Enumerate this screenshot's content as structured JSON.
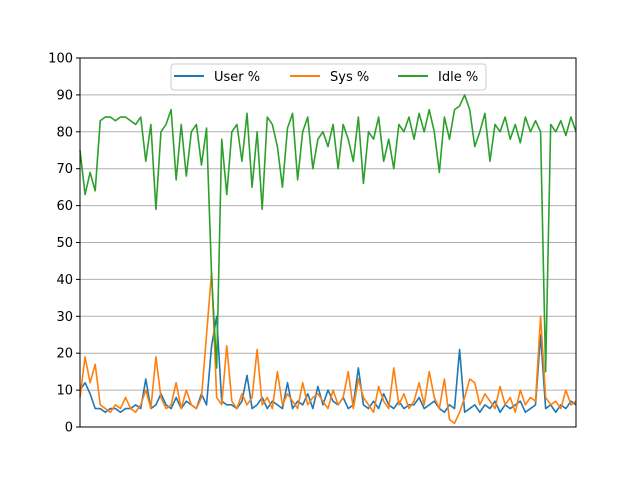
{
  "chart_data": {
    "type": "line",
    "title": "",
    "xlabel": "",
    "ylabel": "",
    "xlim": [
      0,
      98
    ],
    "ylim": [
      0,
      100
    ],
    "yticks": [
      "0",
      "10",
      "20",
      "30",
      "40",
      "50",
      "60",
      "70",
      "80",
      "90",
      "100"
    ],
    "x_ticks_visible": false,
    "grid": "y-axis on",
    "legend": "top-center",
    "series": [
      {
        "name": "User %",
        "color": "#1f77b4",
        "values": [
          10,
          12,
          9,
          5,
          5,
          4,
          5,
          5,
          4,
          5,
          5,
          6,
          5,
          13,
          5,
          6,
          9,
          6,
          5,
          8,
          5,
          7,
          6,
          5,
          9,
          6,
          22,
          30,
          7,
          6,
          6,
          5,
          7,
          14,
          5,
          6,
          8,
          5,
          7,
          6,
          5,
          12,
          5,
          7,
          6,
          9,
          5,
          11,
          6,
          10,
          7,
          6,
          8,
          5,
          6,
          16,
          6,
          5,
          7,
          5,
          9,
          6,
          5,
          7,
          5,
          6,
          6,
          8,
          5,
          6,
          7,
          5,
          4,
          6,
          5,
          21,
          4,
          5,
          6,
          4,
          6,
          5,
          7,
          4,
          6,
          5,
          6,
          7,
          4,
          5,
          6,
          25,
          5,
          6,
          4,
          6,
          5,
          7,
          6
        ]
      },
      {
        "name": "Sys %",
        "color": "#ff7f0e",
        "values": [
          8,
          19,
          12,
          17,
          6,
          5,
          4,
          6,
          5,
          8,
          5,
          4,
          6,
          10,
          5,
          19,
          8,
          5,
          6,
          12,
          5,
          10,
          6,
          5,
          8,
          25,
          42,
          8,
          6,
          22,
          7,
          5,
          9,
          6,
          8,
          21,
          6,
          8,
          5,
          15,
          6,
          9,
          7,
          5,
          12,
          6,
          8,
          9,
          7,
          5,
          10,
          6,
          8,
          15,
          5,
          13,
          8,
          6,
          4,
          11,
          7,
          5,
          16,
          6,
          9,
          5,
          7,
          12,
          6,
          15,
          8,
          5,
          13,
          2,
          1,
          4,
          8,
          13,
          12,
          6,
          9,
          7,
          5,
          11,
          6,
          8,
          4,
          10,
          6,
          8,
          7,
          30,
          8,
          6,
          7,
          5,
          10,
          6,
          7
        ]
      },
      {
        "name": "Idle %",
        "color": "#2ca02c",
        "values": [
          75,
          63,
          69,
          64,
          83,
          84,
          84,
          83,
          84,
          84,
          83,
          82,
          84,
          72,
          82,
          59,
          80,
          82,
          86,
          67,
          82,
          68,
          80,
          82,
          71,
          81,
          41,
          16,
          78,
          63,
          80,
          82,
          72,
          85,
          65,
          80,
          59,
          84,
          82,
          76,
          65,
          81,
          85,
          67,
          80,
          84,
          70,
          78,
          80,
          76,
          82,
          70,
          82,
          78,
          72,
          84,
          66,
          80,
          78,
          84,
          72,
          78,
          70,
          82,
          80,
          84,
          78,
          85,
          80,
          86,
          80,
          69,
          84,
          78,
          86,
          87,
          90,
          86,
          76,
          80,
          85,
          72,
          82,
          80,
          84,
          78,
          82,
          77,
          84,
          80,
          83,
          80,
          15,
          82,
          80,
          83,
          79,
          84,
          80
        ]
      }
    ]
  }
}
